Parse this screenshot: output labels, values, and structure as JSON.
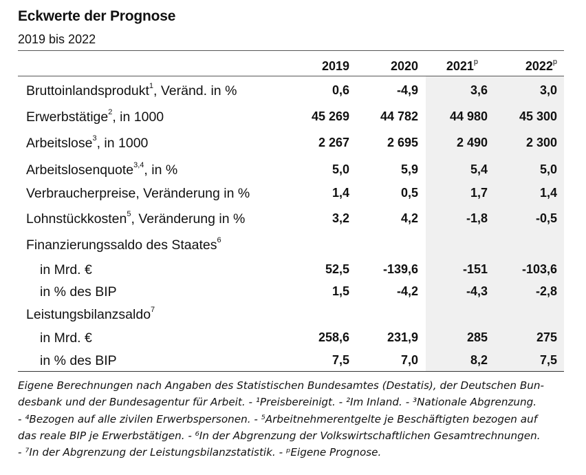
{
  "title": "Eckwerte der Prognose",
  "subtitle": "2019 bis 2022",
  "columns": [
    {
      "year": "2019",
      "mark": ""
    },
    {
      "year": "2020",
      "mark": ""
    },
    {
      "year": "2021",
      "mark": "p"
    },
    {
      "year": "2022",
      "mark": "p"
    }
  ],
  "rows": [
    {
      "label_pre": "Bruttoinlandsprodukt",
      "sup": "1",
      "label_post": ", Veränd. in %",
      "values": [
        "0,6",
        "-4,9",
        "3,6",
        "3,0"
      ]
    },
    {
      "label_pre": "Erwerbstätige",
      "sup": "2",
      "label_post": ", in 1000",
      "values": [
        "45 269",
        "44 782",
        "44 980",
        "45 300"
      ]
    },
    {
      "label_pre": "Arbeitslose",
      "sup": "3",
      "label_post": ", in 1000",
      "values": [
        "2 267",
        "2 695",
        "2 490",
        "2 300"
      ]
    },
    {
      "label_pre": "Arbeitslosenquote",
      "sup": "3,4",
      "label_post": ", in %",
      "values": [
        "5,0",
        "5,9",
        "5,4",
        "5,0"
      ]
    },
    {
      "label_pre": "Verbraucherpreise, Veränderung in %",
      "sup": "",
      "label_post": "",
      "values": [
        "1,4",
        "0,5",
        "1,7",
        "1,4"
      ]
    },
    {
      "label_pre": "Lohnstückkosten",
      "sup": "5",
      "label_post": ", Veränderung in %",
      "values": [
        "3,2",
        "4,2",
        "-1,8",
        "-0,5"
      ]
    },
    {
      "label_pre": "Finanzierungssaldo des Staates",
      "sup": "6",
      "label_post": "",
      "values": [
        "",
        "",
        "",
        ""
      ]
    },
    {
      "label_pre": "in Mrd. €",
      "sup": "",
      "label_post": "",
      "values": [
        "52,5",
        "-139,6",
        "-151",
        "-103,6"
      ]
    },
    {
      "label_pre": "in % des BIP",
      "sup": "",
      "label_post": "",
      "values": [
        "1,5",
        "-4,2",
        "-4,3",
        "-2,8"
      ]
    },
    {
      "label_pre": "Leistungsbilanzsaldo",
      "sup": "7",
      "label_post": "",
      "values": [
        "",
        "",
        "",
        ""
      ]
    },
    {
      "label_pre": "in Mrd. €",
      "sup": "",
      "label_post": "",
      "values": [
        "258,6",
        "231,9",
        "285",
        "275"
      ]
    },
    {
      "label_pre": "in % des BIP",
      "sup": "",
      "label_post": "",
      "values": [
        "7,5",
        "7,0",
        "8,2",
        "7,5"
      ]
    }
  ],
  "footnote_lines": [
    "Eigene Berechnungen nach Angaben des Statistischen Bundesamtes (Destatis), der Deutschen Bun-",
    "desbank und der Bundesagentur für Arbeit. - ¹Preisbereinigt. - ²Im Inland. - ³Nationale Abgrenzung.",
    "- ⁴Bezogen auf alle zivilen Erwerbspersonen. - ⁵Arbeitnehmerentgelte je Beschäftigten bezogen auf",
    "das reale BIP je Erwerbstätigen. - ⁶In der Abgrenzung der Volkswirtschaftlichen Gesamtrechnungen.",
    "- ⁷In der Abgrenzung der Leistungsbilanzstatistik. - ᵖEigene Prognose."
  ]
}
